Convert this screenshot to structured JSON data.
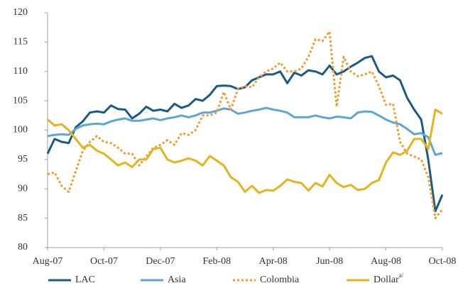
{
  "chart_data": {
    "type": "line",
    "categories": [
      "Aug-07",
      null,
      null,
      null,
      null,
      null,
      null,
      null,
      "Oct-07",
      null,
      null,
      null,
      null,
      null,
      null,
      null,
      "Dec-07",
      null,
      null,
      null,
      null,
      null,
      null,
      null,
      "Feb-08",
      null,
      null,
      null,
      null,
      null,
      null,
      null,
      "Apr-08",
      null,
      null,
      null,
      null,
      null,
      null,
      null,
      "Jun-08",
      null,
      null,
      null,
      null,
      null,
      null,
      null,
      "Aug-08",
      null,
      null,
      null,
      null,
      null,
      null,
      null,
      "Oct-08"
    ],
    "series": [
      {
        "name": "LAC",
        "color": "#1b5a85",
        "dash": "solid",
        "values": [
          96,
          98.5,
          98,
          97.8,
          100.5,
          101.5,
          103,
          103.2,
          103,
          104.2,
          103.6,
          103.5,
          102,
          102.8,
          104,
          103.3,
          103.5,
          103.2,
          104.5,
          103.8,
          104.2,
          105.3,
          105,
          106,
          107.5,
          107.6,
          107.5,
          107,
          107.3,
          108.5,
          109,
          109.5,
          109.5,
          110,
          108,
          109.8,
          109.3,
          110.2,
          110,
          109.5,
          111,
          109.5,
          110,
          110.8,
          111.5,
          112.3,
          112.6,
          110,
          109,
          109.3,
          108.5,
          105.5,
          103.5,
          101.8,
          95,
          86.2,
          89
        ]
      },
      {
        "name": "Asia",
        "color": "#5ea6d2",
        "dash": "solid",
        "values": [
          99,
          99.2,
          99.3,
          99.2,
          100.2,
          100.8,
          101,
          101.1,
          101,
          101.5,
          101.8,
          102,
          101.6,
          101.6,
          101.8,
          102,
          101.7,
          102,
          102.2,
          102.5,
          102.2,
          102.5,
          103,
          103,
          103.3,
          103.7,
          103.5,
          102.8,
          103,
          103.3,
          103.5,
          103.8,
          103.5,
          103.3,
          103,
          102.2,
          102.2,
          102.2,
          102.5,
          102.2,
          102,
          102.3,
          102.2,
          102,
          103,
          103.2,
          103.1,
          102.5,
          101.8,
          101.3,
          101,
          100.2,
          99.3,
          99.5,
          98.8,
          95.8,
          96.1
        ]
      },
      {
        "name": "Colombia",
        "color": "#f29a2e",
        "dash": "dotted",
        "values": [
          92.5,
          92.8,
          90.5,
          89.5,
          93,
          96.5,
          98,
          99,
          98,
          97.8,
          97,
          96,
          96,
          94,
          95.5,
          97,
          97.5,
          98.3,
          97.5,
          99.5,
          99.2,
          100,
          102.5,
          102.5,
          103,
          106.5,
          103.5,
          107,
          107.5,
          107.3,
          109,
          110,
          110.5,
          111.5,
          110,
          110,
          110.5,
          112.5,
          115.5,
          115.2,
          116.8,
          104,
          112.5,
          110,
          109.2,
          109.5,
          110,
          107.5,
          104.3,
          104.5,
          98,
          96,
          95.5,
          95,
          92,
          85,
          86.5
        ]
      },
      {
        "name": "Dollar",
        "name_superscript": "a/",
        "color": "#e6b31e",
        "dash": "solid",
        "values": [
          101.8,
          100.8,
          101,
          100,
          98.5,
          97,
          97.5,
          96.5,
          96,
          95,
          94,
          94.5,
          93.7,
          95,
          95,
          96.8,
          97,
          95,
          94.5,
          94.8,
          95.2,
          94.8,
          94,
          95.6,
          94.8,
          94,
          92,
          91.2,
          89.5,
          90.5,
          89.3,
          89.8,
          89.7,
          90.5,
          91.6,
          91.2,
          91,
          89.7,
          91,
          90.4,
          92.4,
          91,
          90.3,
          90.7,
          89.8,
          90,
          91,
          91.5,
          94.5,
          96.2,
          95.8,
          96.5,
          98.5,
          98.5,
          96.8,
          103.5,
          102.8
        ]
      }
    ],
    "ylim": [
      80,
      120
    ],
    "yticks": [
      80,
      85,
      90,
      95,
      100,
      105,
      110,
      115,
      120
    ],
    "grid": false,
    "legend": "bottom"
  }
}
